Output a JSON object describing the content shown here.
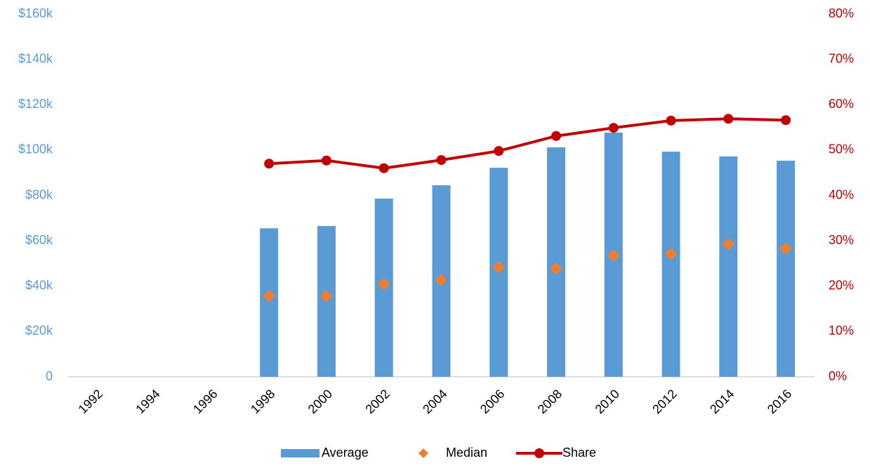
{
  "chart_data": {
    "type": "bar",
    "categories": [
      "1992",
      "1994",
      "1996",
      "1998",
      "2000",
      "2002",
      "2004",
      "2006",
      "2008",
      "2010",
      "2012",
      "2014",
      "2016"
    ],
    "series": [
      {
        "name": "Average",
        "type": "bar",
        "color": "#5b9bd5",
        "values": [
          null,
          null,
          null,
          65500,
          66500,
          78600,
          84500,
          92200,
          101200,
          107700,
          99300,
          97200,
          95300
        ]
      },
      {
        "name": "Median",
        "type": "scatter",
        "color": "#ed7d31",
        "values": [
          null,
          null,
          null,
          35600,
          35600,
          40900,
          42700,
          48300,
          47700,
          53500,
          54200,
          58500,
          56600
        ]
      },
      {
        "name": "Share",
        "type": "line",
        "axis": "y2",
        "color": "#c00000",
        "values": [
          null,
          null,
          null,
          47.0,
          47.7,
          46.0,
          47.8,
          49.8,
          53.1,
          54.9,
          56.5,
          56.9,
          56.6
        ]
      }
    ],
    "ylim": [
      0,
      160000
    ],
    "yticks": [
      0,
      {
        "value": 20000,
        "label": "$20k"
      },
      {
        "value": 40000,
        "label": "$40k"
      },
      {
        "value": 60000,
        "label": "$60k"
      },
      {
        "value": 80000,
        "label": "$80k"
      },
      {
        "value": 100000,
        "label": "$100k"
      },
      {
        "value": 120000,
        "label": "$120k"
      },
      {
        "value": 140000,
        "label": "$140k"
      },
      {
        "value": 160000,
        "label": "$160k"
      }
    ],
    "y2lim": [
      0,
      80
    ],
    "y2ticks": [
      {
        "value": 0,
        "label": "0%"
      },
      {
        "value": 10,
        "label": "10%"
      },
      {
        "value": 20,
        "label": "20%"
      },
      {
        "value": 30,
        "label": "30%"
      },
      {
        "value": 40,
        "label": "40%"
      },
      {
        "value": 50,
        "label": "50%"
      },
      {
        "value": 60,
        "label": "60%"
      },
      {
        "value": 70,
        "label": "70%"
      },
      {
        "value": 80,
        "label": "80%"
      }
    ],
    "ytick_color": "#5b9bd5",
    "y2tick_color": "#c00000",
    "legend": "bottom"
  }
}
